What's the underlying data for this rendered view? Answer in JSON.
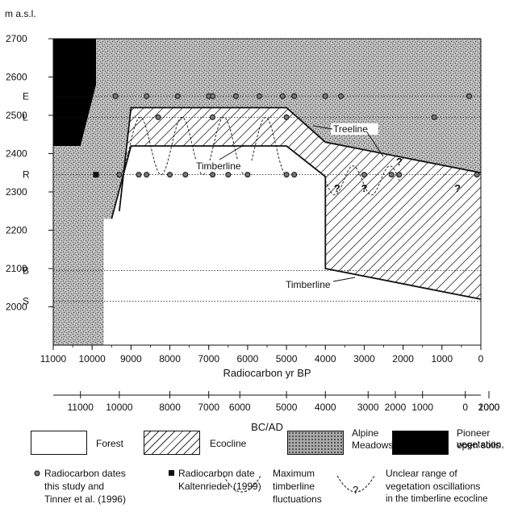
{
  "chart_data": {
    "type": "area",
    "ylabel": "m a.s.l.",
    "xlabel": "Radiocarbon yr BP",
    "xlim": [
      11000,
      0
    ],
    "ylim": [
      1900,
      2700
    ],
    "y_ticks": [
      "2700",
      "2600",
      "2500",
      "2400",
      "2300",
      "2200",
      "2100",
      "2000"
    ],
    "x_ticks": [
      "11000",
      "10000",
      "9000",
      "8000",
      "7000",
      "6000",
      "5000",
      "4000",
      "3000",
      "2000",
      "1000",
      "0"
    ],
    "secondary_xlabel": "BC/AD",
    "secondary_ticks": [
      {
        "bp": 10300,
        "label": "11000"
      },
      {
        "bp": 9300,
        "label": "10000"
      },
      {
        "bp": 8000,
        "label": "8000"
      },
      {
        "bp": 7000,
        "label": "7000"
      },
      {
        "bp": 6200,
        "label": "6000"
      },
      {
        "bp": 5000,
        "label": "5000"
      },
      {
        "bp": 4000,
        "label": "4000"
      },
      {
        "bp": 2900,
        "label": "3000"
      },
      {
        "bp": 2200,
        "label": "2000"
      },
      {
        "bp": 1500,
        "label": "1000"
      },
      {
        "bp": 400,
        "label": "0"
      },
      {
        "bp": -1500,
        "label": "1000"
      },
      {
        "bp": -2800,
        "label": "2000"
      }
    ],
    "reference_levels": [
      {
        "label": "E",
        "elevation": 2550
      },
      {
        "label": "L",
        "elevation": 2495
      },
      {
        "label": "R",
        "elevation": 2345
      },
      {
        "label": "B",
        "elevation": 2095
      },
      {
        "label": "S",
        "elevation": 2015
      }
    ],
    "radiocarbon_dates_this_study": [
      {
        "bp": 9400,
        "elevation": 2550
      },
      {
        "bp": 8600,
        "elevation": 2550
      },
      {
        "bp": 7800,
        "elevation": 2550
      },
      {
        "bp": 7000,
        "elevation": 2550
      },
      {
        "bp": 6900,
        "elevation": 2550
      },
      {
        "bp": 6300,
        "elevation": 2550
      },
      {
        "bp": 5700,
        "elevation": 2550
      },
      {
        "bp": 5100,
        "elevation": 2550
      },
      {
        "bp": 4800,
        "elevation": 2550
      },
      {
        "bp": 4000,
        "elevation": 2550
      },
      {
        "bp": 3600,
        "elevation": 2550
      },
      {
        "bp": 300,
        "elevation": 2550
      },
      {
        "bp": 8300,
        "elevation": 2495
      },
      {
        "bp": 6900,
        "elevation": 2495
      },
      {
        "bp": 5000,
        "elevation": 2495
      },
      {
        "bp": 1200,
        "elevation": 2495
      },
      {
        "bp": 9300,
        "elevation": 2345
      },
      {
        "bp": 8800,
        "elevation": 2345
      },
      {
        "bp": 8600,
        "elevation": 2345
      },
      {
        "bp": 8000,
        "elevation": 2345
      },
      {
        "bp": 7600,
        "elevation": 2345
      },
      {
        "bp": 6900,
        "elevation": 2345
      },
      {
        "bp": 6500,
        "elevation": 2345
      },
      {
        "bp": 6000,
        "elevation": 2345
      },
      {
        "bp": 5000,
        "elevation": 2345
      },
      {
        "bp": 4800,
        "elevation": 2345
      },
      {
        "bp": 3000,
        "elevation": 2345
      },
      {
        "bp": 2300,
        "elevation": 2345
      },
      {
        "bp": 2100,
        "elevation": 2345
      },
      {
        "bp": 100,
        "elevation": 2345
      }
    ],
    "radiocarbon_date_kaltenrieder": [
      {
        "bp": 9900,
        "elevation": 2345
      }
    ],
    "treeline": [
      {
        "bp": 9300,
        "elevation": 2250
      },
      {
        "bp": 9000,
        "elevation": 2520
      },
      {
        "bp": 5000,
        "elevation": 2520
      },
      {
        "bp": 4000,
        "elevation": 2430
      },
      {
        "bp": 0,
        "elevation": 2350
      }
    ],
    "timberline": [
      {
        "bp": 9500,
        "elevation": 2230
      },
      {
        "bp": 9000,
        "elevation": 2420
      },
      {
        "bp": 5000,
        "elevation": 2420
      },
      {
        "bp": 4000,
        "elevation": 2340
      },
      {
        "bp": 4000,
        "elevation": 2100
      },
      {
        "bp": 0,
        "elevation": 2020
      }
    ],
    "forest_boundary": [
      {
        "bp": 11000,
        "elevation": 2340
      },
      {
        "bp": 10000,
        "elevation": 2340
      },
      {
        "bp": 9700,
        "elevation": 2340
      },
      {
        "bp": 9700,
        "elevation": 1900
      }
    ],
    "pioneer_vegetation": [
      {
        "bp": 11000,
        "elevation": 2700
      },
      {
        "bp": 9900,
        "elevation": 2700
      },
      {
        "bp": 9900,
        "elevation": 2580
      },
      {
        "bp": 10300,
        "elevation": 2420
      },
      {
        "bp": 11000,
        "elevation": 2420
      }
    ],
    "annotations": {
      "treeline_label": "Treeline",
      "timberline_label_upper": "Timberline",
      "timberline_label_lower": "Timberline",
      "question_marks": [
        {
          "bp": 3700,
          "elevation": 2300,
          "text": "?"
        },
        {
          "bp": 3000,
          "elevation": 2300,
          "text": "?"
        },
        {
          "bp": 2100,
          "elevation": 2370,
          "text": "?"
        },
        {
          "bp": 600,
          "elevation": 2300,
          "text": "?"
        }
      ]
    },
    "colors": {
      "alpine_meadows": "#9a9a9a",
      "pioneer": "#000000",
      "forest": "#ffffff",
      "line": "#111111"
    }
  },
  "legend": {
    "forest": "Forest",
    "ecocline": "Ecocline",
    "alpine_1": "Alpine",
    "alpine_2": "Meadows",
    "pioneer_1": "Pioneer vegetation,",
    "pioneer_2": "open soils",
    "rc_study_1": "Radiocarbon dates",
    "rc_study_2": "this study and",
    "rc_study_3": "Tinner et al. (1996)",
    "rc_kalt_1": "Radiocarbon date",
    "rc_kalt_2": "Kaltenrieder (1999)",
    "max_1": "Maximum",
    "max_2": "timberline",
    "max_3": "fluctuations",
    "unclear_1": "Unclear range of",
    "unclear_2": "vegetation oscillations",
    "unclear_3": "in the timberline ecocline",
    "unclear_symbol": "?"
  }
}
